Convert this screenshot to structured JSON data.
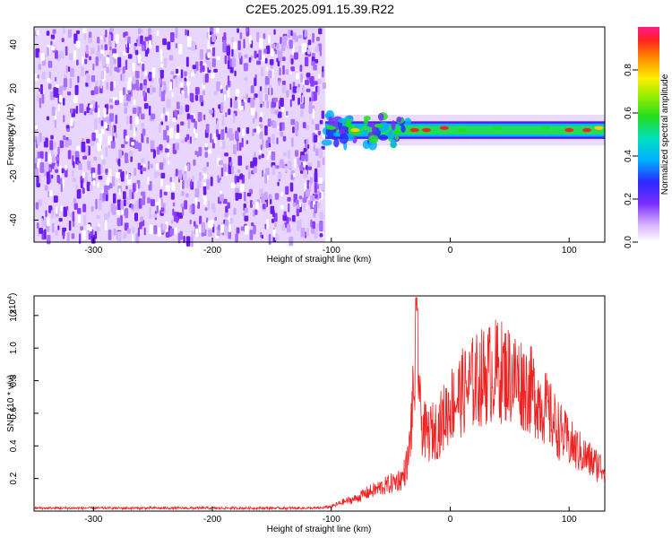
{
  "title": "C2E5.2025.091.15.39.R22",
  "colors": {
    "line": "#ee2222",
    "axis": "#000000",
    "spectrogram_noise": "#7b2cff"
  },
  "colorbar": {
    "label": "Normalized spectral amplitude",
    "ticks": [
      "0.0",
      "0.2",
      "0.4",
      "0.6",
      "0.8"
    ]
  },
  "chart_data": [
    {
      "type": "heatmap",
      "xlabel": "Height of straight line (km)",
      "ylabel": "Frequency (Hz)",
      "xlim": [
        -350,
        130
      ],
      "ylim": [
        -50,
        48
      ],
      "xticks": [
        "-300",
        "-200",
        "-100",
        "0",
        "100"
      ],
      "yticks": [
        "-40",
        "-20",
        "0",
        "20",
        "40"
      ],
      "description_regions": [
        {
          "x_range": [
            -350,
            -105
          ],
          "y_range": [
            -50,
            48
          ],
          "normalized_amplitude": 0.15
        },
        {
          "x_range": [
            -105,
            130
          ],
          "y_center": 1,
          "normalized_amplitude": 0.6
        }
      ],
      "peak_band": [
        {
          "x": -100,
          "y": 2,
          "amp": 0.5
        },
        {
          "x": -80,
          "y": 1,
          "amp": 0.7
        },
        {
          "x": -60,
          "y": 3,
          "amp": 0.6
        },
        {
          "x": -45,
          "y": 0,
          "amp": 0.55
        },
        {
          "x": -30,
          "y": 1,
          "amp": 0.9
        },
        {
          "x": -20,
          "y": 1,
          "amp": 0.95
        },
        {
          "x": -5,
          "y": 2,
          "amp": 0.9
        },
        {
          "x": 10,
          "y": 1,
          "amp": 0.6
        },
        {
          "x": 40,
          "y": 2,
          "amp": 0.55
        },
        {
          "x": 80,
          "y": 2,
          "amp": 0.6
        },
        {
          "x": 100,
          "y": 1,
          "amp": 0.95
        },
        {
          "x": 115,
          "y": 1,
          "amp": 0.9
        },
        {
          "x": 125,
          "y": 2,
          "amp": 0.85
        }
      ]
    },
    {
      "type": "line",
      "xlabel": "Height of straight line (km)",
      "ylabel": "SNR (10 * v/v)",
      "y_scale_label": "(x10",
      "y_scale_exp": "4",
      "xlim": [
        -350,
        130
      ],
      "ylim": [
        0,
        1.32
      ],
      "xticks": [
        "-300",
        "-200",
        "-100",
        "0",
        "100"
      ],
      "yticks": [
        "0.2",
        "0.4",
        "0.6",
        "0.8",
        "1.0",
        "1.2"
      ],
      "series": [
        {
          "x": [
            -350,
            -300,
            -250,
            -200,
            -150,
            -110,
            -100,
            -90,
            -80,
            -70,
            -60,
            -50,
            -40,
            -35,
            -30,
            -28,
            -25,
            -20,
            -10,
            0,
            10,
            20,
            30,
            40,
            50,
            60,
            70,
            80,
            90,
            100,
            110,
            120,
            130
          ],
          "y": [
            0.02,
            0.02,
            0.02,
            0.02,
            0.02,
            0.02,
            0.03,
            0.06,
            0.08,
            0.12,
            0.15,
            0.18,
            0.22,
            0.35,
            0.85,
            1.3,
            0.6,
            0.5,
            0.55,
            0.7,
            0.78,
            0.85,
            0.9,
            0.93,
            0.9,
            0.85,
            0.78,
            0.68,
            0.55,
            0.45,
            0.38,
            0.32,
            0.28
          ]
        }
      ]
    }
  ]
}
